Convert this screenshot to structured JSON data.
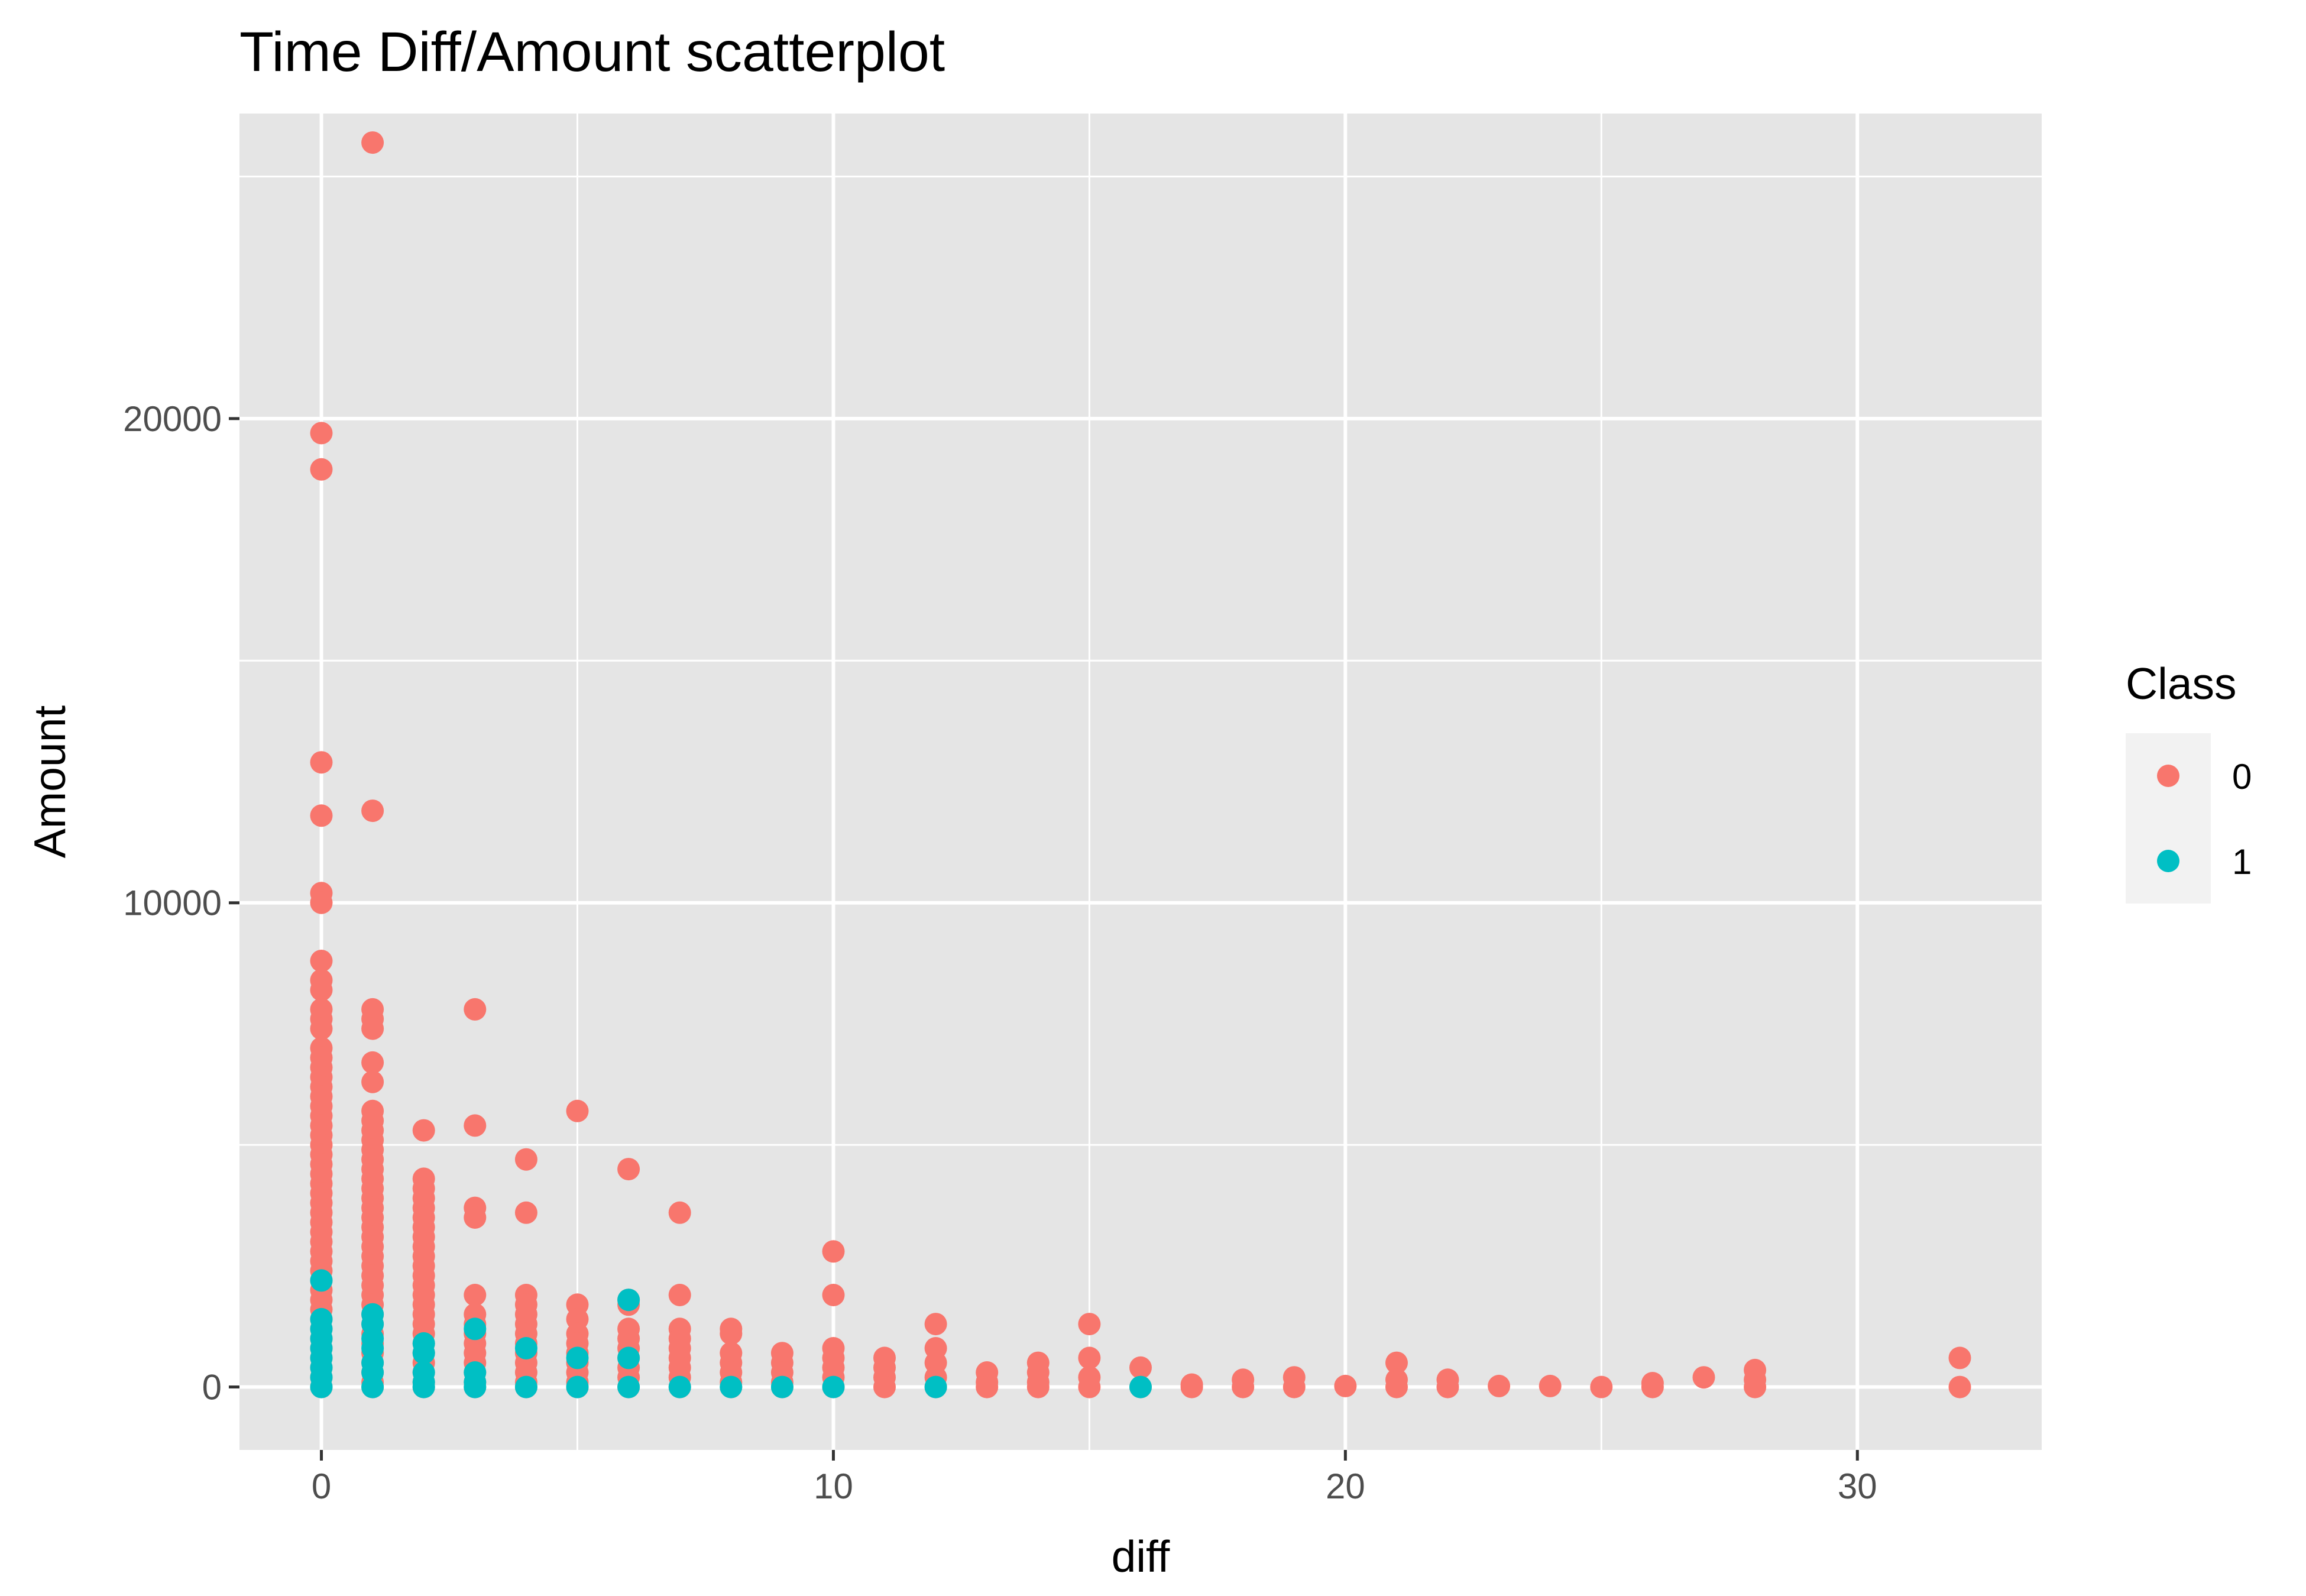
{
  "chart_data": {
    "type": "scatter",
    "title": "Time Diff/Amount scatterplot",
    "xlabel": "diff",
    "ylabel": "Amount",
    "xlim": [
      -1.6,
      33.6
    ],
    "ylim": [
      -1300,
      26300
    ],
    "x_ticks": [
      0,
      10,
      20,
      30
    ],
    "y_ticks": [
      0,
      10000,
      20000
    ],
    "x_minor": [
      5,
      15,
      25
    ],
    "y_minor": [
      5000,
      15000,
      25000
    ],
    "grid": true,
    "background": "#e5e5e5",
    "legend": {
      "title": "Class",
      "position": "right",
      "entries": [
        {
          "label": "0",
          "color": "#f8766d"
        },
        {
          "label": "1",
          "color": "#00bfc4"
        }
      ]
    },
    "series": [
      {
        "name": "0",
        "color": "#f8766d",
        "points": [
          [
            0,
            19700
          ],
          [
            0,
            18950
          ],
          [
            0,
            12900
          ],
          [
            0,
            11800
          ],
          [
            0,
            10200
          ],
          [
            0,
            10000
          ],
          [
            0,
            8800
          ],
          [
            0,
            8400
          ],
          [
            0,
            8200
          ],
          [
            0,
            7800
          ],
          [
            0,
            7600
          ],
          [
            0,
            7400
          ],
          [
            0,
            7000
          ],
          [
            0,
            6800
          ],
          [
            0,
            6600
          ],
          [
            0,
            6400
          ],
          [
            0,
            6200
          ],
          [
            0,
            6000
          ],
          [
            0,
            5800
          ],
          [
            0,
            5600
          ],
          [
            0,
            5400
          ],
          [
            0,
            5200
          ],
          [
            0,
            5000
          ],
          [
            0,
            4800
          ],
          [
            0,
            4600
          ],
          [
            0,
            4400
          ],
          [
            0,
            4200
          ],
          [
            0,
            4000
          ],
          [
            0,
            3800
          ],
          [
            0,
            3600
          ],
          [
            0,
            3400
          ],
          [
            0,
            3200
          ],
          [
            0,
            3000
          ],
          [
            0,
            2800
          ],
          [
            0,
            2600
          ],
          [
            0,
            2400
          ],
          [
            0,
            2200
          ],
          [
            0,
            2000
          ],
          [
            0,
            1800
          ],
          [
            0,
            1600
          ],
          [
            0,
            1400
          ],
          [
            0,
            1200
          ],
          [
            0,
            1000
          ],
          [
            0,
            800
          ],
          [
            0,
            600
          ],
          [
            0,
            400
          ],
          [
            0,
            200
          ],
          [
            0,
            0
          ],
          [
            1,
            25700
          ],
          [
            1,
            11900
          ],
          [
            1,
            7800
          ],
          [
            1,
            7600
          ],
          [
            1,
            7400
          ],
          [
            1,
            6700
          ],
          [
            1,
            6300
          ],
          [
            1,
            5700
          ],
          [
            1,
            5500
          ],
          [
            1,
            5300
          ],
          [
            1,
            5100
          ],
          [
            1,
            4900
          ],
          [
            1,
            4700
          ],
          [
            1,
            4500
          ],
          [
            1,
            4300
          ],
          [
            1,
            4100
          ],
          [
            1,
            3900
          ],
          [
            1,
            3700
          ],
          [
            1,
            3500
          ],
          [
            1,
            3300
          ],
          [
            1,
            3100
          ],
          [
            1,
            2900
          ],
          [
            1,
            2700
          ],
          [
            1,
            2500
          ],
          [
            1,
            2300
          ],
          [
            1,
            2100
          ],
          [
            1,
            1900
          ],
          [
            1,
            1700
          ],
          [
            1,
            1500
          ],
          [
            1,
            1300
          ],
          [
            1,
            1100
          ],
          [
            1,
            900
          ],
          [
            1,
            700
          ],
          [
            1,
            500
          ],
          [
            1,
            300
          ],
          [
            1,
            100
          ],
          [
            1,
            0
          ],
          [
            2,
            5300
          ],
          [
            2,
            4300
          ],
          [
            2,
            4100
          ],
          [
            2,
            3900
          ],
          [
            2,
            3700
          ],
          [
            2,
            3500
          ],
          [
            2,
            3300
          ],
          [
            2,
            3100
          ],
          [
            2,
            2900
          ],
          [
            2,
            2700
          ],
          [
            2,
            2500
          ],
          [
            2,
            2300
          ],
          [
            2,
            2100
          ],
          [
            2,
            1900
          ],
          [
            2,
            1700
          ],
          [
            2,
            1500
          ],
          [
            2,
            1300
          ],
          [
            2,
            1100
          ],
          [
            2,
            900
          ],
          [
            2,
            700
          ],
          [
            2,
            500
          ],
          [
            2,
            300
          ],
          [
            2,
            100
          ],
          [
            2,
            0
          ],
          [
            3,
            7800
          ],
          [
            3,
            5400
          ],
          [
            3,
            3700
          ],
          [
            3,
            3500
          ],
          [
            3,
            1900
          ],
          [
            3,
            1500
          ],
          [
            3,
            1300
          ],
          [
            3,
            1100
          ],
          [
            3,
            900
          ],
          [
            3,
            700
          ],
          [
            3,
            500
          ],
          [
            3,
            300
          ],
          [
            3,
            100
          ],
          [
            3,
            0
          ],
          [
            4,
            4700
          ],
          [
            4,
            3600
          ],
          [
            4,
            1900
          ],
          [
            4,
            1700
          ],
          [
            4,
            1500
          ],
          [
            4,
            1300
          ],
          [
            4,
            1100
          ],
          [
            4,
            900
          ],
          [
            4,
            700
          ],
          [
            4,
            500
          ],
          [
            4,
            300
          ],
          [
            4,
            100
          ],
          [
            4,
            0
          ],
          [
            5,
            5700
          ],
          [
            5,
            1700
          ],
          [
            5,
            1400
          ],
          [
            5,
            1100
          ],
          [
            5,
            900
          ],
          [
            5,
            700
          ],
          [
            5,
            500
          ],
          [
            5,
            300
          ],
          [
            5,
            100
          ],
          [
            5,
            0
          ],
          [
            6,
            4500
          ],
          [
            6,
            1800
          ],
          [
            6,
            1700
          ],
          [
            6,
            1200
          ],
          [
            6,
            1000
          ],
          [
            6,
            800
          ],
          [
            6,
            600
          ],
          [
            6,
            400
          ],
          [
            6,
            200
          ],
          [
            6,
            0
          ],
          [
            7,
            3600
          ],
          [
            7,
            1900
          ],
          [
            7,
            1200
          ],
          [
            7,
            1000
          ],
          [
            7,
            800
          ],
          [
            7,
            600
          ],
          [
            7,
            400
          ],
          [
            7,
            200
          ],
          [
            7,
            0
          ],
          [
            8,
            1200
          ],
          [
            8,
            1100
          ],
          [
            8,
            700
          ],
          [
            8,
            500
          ],
          [
            8,
            300
          ],
          [
            8,
            100
          ],
          [
            8,
            0
          ],
          [
            9,
            700
          ],
          [
            9,
            500
          ],
          [
            9,
            300
          ],
          [
            9,
            100
          ],
          [
            9,
            0
          ],
          [
            10,
            2800
          ],
          [
            10,
            1900
          ],
          [
            10,
            800
          ],
          [
            10,
            600
          ],
          [
            10,
            400
          ],
          [
            10,
            200
          ],
          [
            10,
            0
          ],
          [
            11,
            600
          ],
          [
            11,
            400
          ],
          [
            11,
            200
          ],
          [
            11,
            0
          ],
          [
            12,
            1300
          ],
          [
            12,
            800
          ],
          [
            12,
            500
          ],
          [
            12,
            200
          ],
          [
            12,
            0
          ],
          [
            13,
            300
          ],
          [
            13,
            100
          ],
          [
            13,
            0
          ],
          [
            14,
            500
          ],
          [
            14,
            300
          ],
          [
            14,
            100
          ],
          [
            14,
            0
          ],
          [
            15,
            1300
          ],
          [
            15,
            600
          ],
          [
            15,
            200
          ],
          [
            15,
            0
          ],
          [
            16,
            400
          ],
          [
            16,
            0
          ],
          [
            17,
            50
          ],
          [
            17,
            0
          ],
          [
            18,
            150
          ],
          [
            18,
            0
          ],
          [
            19,
            200
          ],
          [
            19,
            0
          ],
          [
            20,
            20
          ],
          [
            21,
            500
          ],
          [
            21,
            150
          ],
          [
            21,
            0
          ],
          [
            22,
            150
          ],
          [
            22,
            0
          ],
          [
            23,
            20
          ],
          [
            24,
            20
          ],
          [
            25,
            0
          ],
          [
            26,
            80
          ],
          [
            26,
            0
          ],
          [
            27,
            200
          ],
          [
            28,
            350
          ],
          [
            28,
            150
          ],
          [
            28,
            0
          ],
          [
            32,
            600
          ],
          [
            32,
            0
          ]
        ]
      },
      {
        "name": "1",
        "color": "#00bfc4",
        "points": [
          [
            0,
            2200
          ],
          [
            0,
            1400
          ],
          [
            0,
            1200
          ],
          [
            0,
            1000
          ],
          [
            0,
            800
          ],
          [
            0,
            600
          ],
          [
            0,
            400
          ],
          [
            0,
            200
          ],
          [
            0,
            0
          ],
          [
            1,
            1500
          ],
          [
            1,
            1300
          ],
          [
            1,
            1000
          ],
          [
            1,
            800
          ],
          [
            1,
            500
          ],
          [
            1,
            300
          ],
          [
            1,
            0
          ],
          [
            2,
            900
          ],
          [
            2,
            700
          ],
          [
            2,
            300
          ],
          [
            2,
            100
          ],
          [
            2,
            0
          ],
          [
            3,
            1200
          ],
          [
            3,
            300
          ],
          [
            3,
            100
          ],
          [
            3,
            0
          ],
          [
            4,
            800
          ],
          [
            4,
            0
          ],
          [
            5,
            600
          ],
          [
            5,
            0
          ],
          [
            6,
            1800
          ],
          [
            6,
            600
          ],
          [
            6,
            0
          ],
          [
            7,
            0
          ],
          [
            8,
            0
          ],
          [
            9,
            0
          ],
          [
            10,
            0
          ],
          [
            12,
            0
          ],
          [
            16,
            0
          ]
        ]
      }
    ]
  }
}
